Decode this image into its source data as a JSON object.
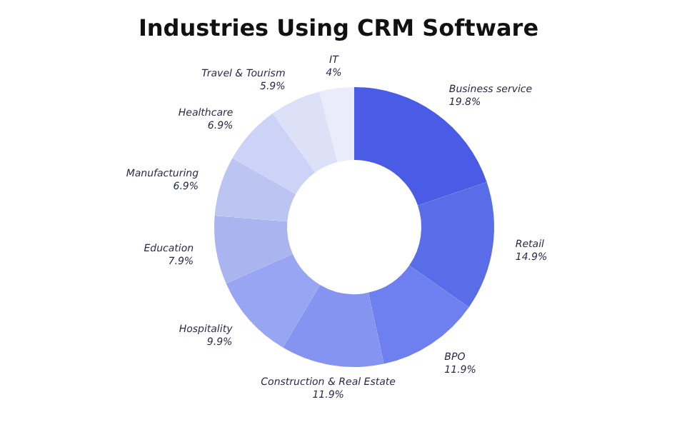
{
  "chart_data": {
    "type": "donut",
    "title": "Industries Using CRM Software",
    "categories": [
      "Business service",
      "Retail",
      "BPO",
      "Construction & Real Estate",
      "Hospitality",
      "Education",
      "Manufacturing",
      "Healthcare",
      "Travel & Tourism",
      "IT"
    ],
    "values": [
      19.8,
      14.9,
      11.9,
      11.9,
      9.9,
      7.9,
      6.9,
      6.9,
      5.9,
      4
    ],
    "colors": [
      "#4a5be6",
      "#5a6de9",
      "#6e80ef",
      "#8594f0",
      "#98a5f2",
      "#aab4ee",
      "#bcc4f2",
      "#cdd3f6",
      "#dde1f8",
      "#eaecfb"
    ],
    "value_labels": [
      "19.8%",
      "14.9%",
      "11.9%",
      "11.9%",
      "9.9%",
      "7.9%",
      "6.9%",
      "6.9%",
      "5.9%",
      "4%"
    ],
    "legend": false
  }
}
